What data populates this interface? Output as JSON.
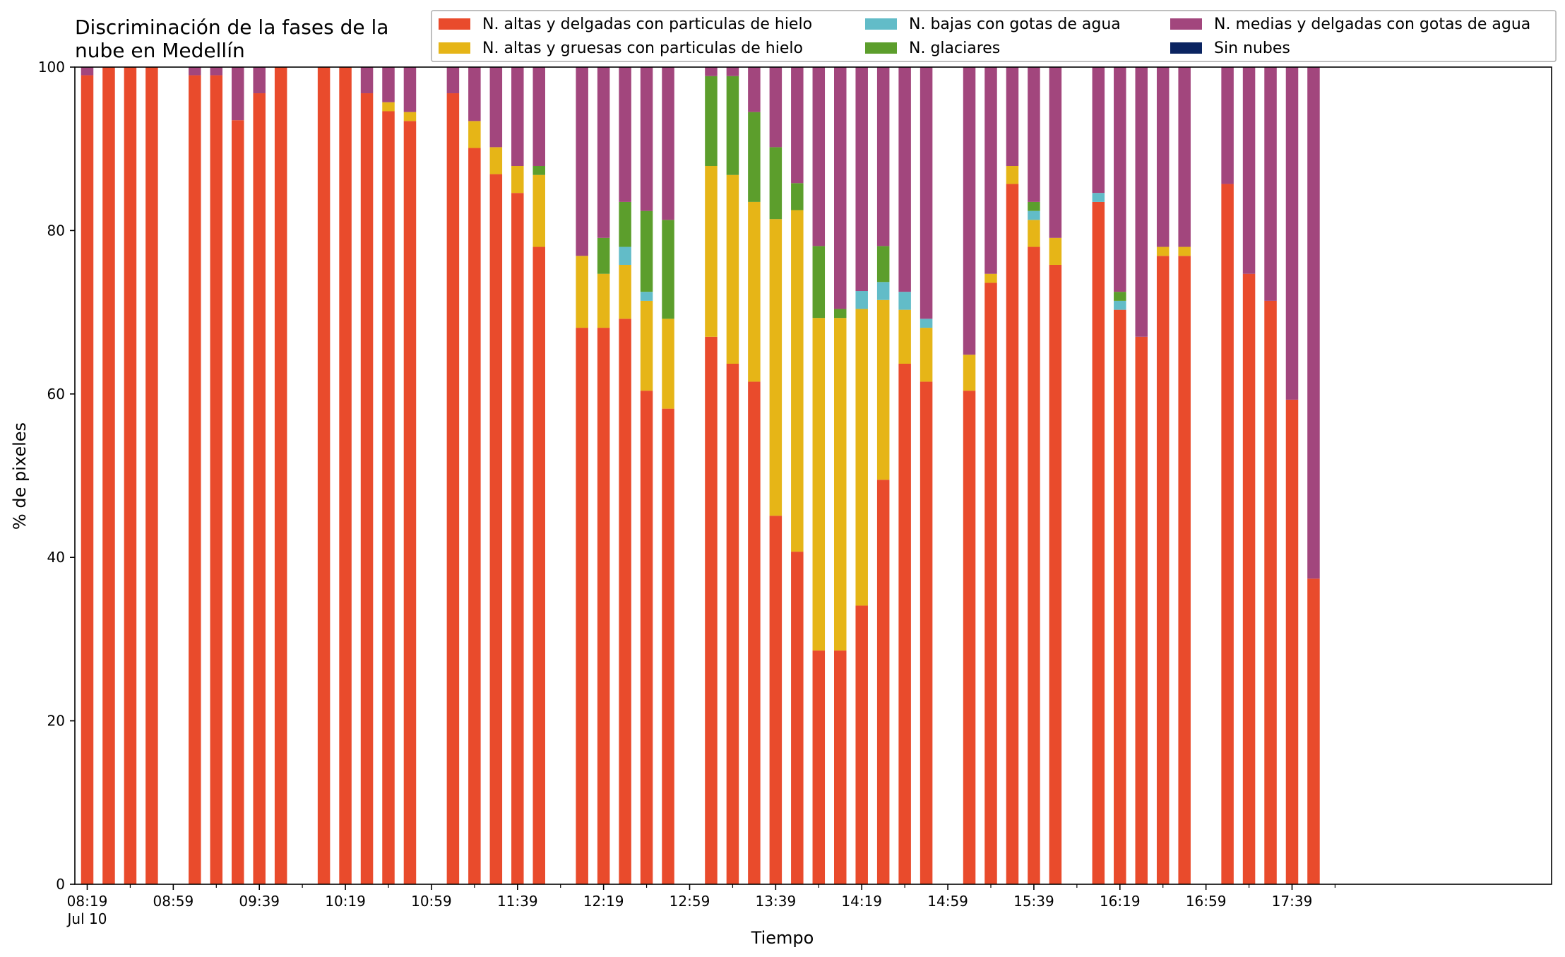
{
  "title": "Discriminación de la fases de la nube en Medellín",
  "chart_data": {
    "type": "bar",
    "stacked": true,
    "xlabel": "Tiempo",
    "ylabel": "% de pixeles",
    "ylim": [
      0,
      100
    ],
    "yticks": [
      0,
      20,
      40,
      60,
      80,
      100
    ],
    "x_time_range": [
      "08:19",
      "17:59"
    ],
    "x_major_ticks": [
      "08:19",
      "08:59",
      "09:39",
      "10:19",
      "10:59",
      "11:39",
      "12:19",
      "12:59",
      "13:39",
      "14:19",
      "14:59",
      "15:39",
      "16:19",
      "16:59",
      "17:39"
    ],
    "x_first_tick_date": "Jul 10",
    "legend_position": "top-right",
    "series": [
      {
        "name": "N. altas y delgadas con particulas de hielo",
        "color": "#e94b2c"
      },
      {
        "name": "N. altas y gruesas con particulas de hielo",
        "color": "#e6b517"
      },
      {
        "name": "N. bajas con gotas de agua",
        "color": "#62bcc8"
      },
      {
        "name": "N. glaciares",
        "color": "#5c9e2c"
      },
      {
        "name": "N. medias y delgadas con gotas de agua",
        "color": "#a2467d"
      },
      {
        "name": "Sin nubes",
        "color": "#0b2461"
      }
    ],
    "bars": [
      {
        "time": "08:19",
        "values": [
          99,
          0,
          0,
          0,
          1,
          0
        ]
      },
      {
        "time": "08:29",
        "values": [
          100,
          0,
          0,
          0,
          0,
          0
        ]
      },
      {
        "time": "08:39",
        "values": [
          100,
          0,
          0,
          0,
          0,
          0
        ]
      },
      {
        "time": "08:49",
        "values": [
          100,
          0,
          0,
          0,
          0,
          0
        ]
      },
      {
        "time": "09:09",
        "values": [
          99,
          0,
          0,
          0,
          1,
          0
        ]
      },
      {
        "time": "09:19",
        "values": [
          99,
          0,
          0,
          0,
          1,
          0
        ]
      },
      {
        "time": "09:29",
        "values": [
          93.5,
          0,
          0,
          0,
          6.5,
          0
        ]
      },
      {
        "time": "09:39",
        "values": [
          96.8,
          0,
          0,
          0,
          3.2,
          0
        ]
      },
      {
        "time": "09:49",
        "values": [
          100,
          0,
          0,
          0,
          0,
          0
        ]
      },
      {
        "time": "10:09",
        "values": [
          100,
          0,
          0,
          0,
          0,
          0
        ]
      },
      {
        "time": "10:19",
        "values": [
          100,
          0,
          0,
          0,
          0,
          0
        ]
      },
      {
        "time": "10:29",
        "values": [
          96.8,
          0,
          0,
          0,
          3.2,
          0
        ]
      },
      {
        "time": "10:39",
        "values": [
          94.6,
          1.1,
          0,
          0,
          4.3,
          0
        ]
      },
      {
        "time": "10:49",
        "values": [
          93.4,
          1.1,
          0,
          0,
          5.5,
          0
        ]
      },
      {
        "time": "11:09",
        "values": [
          96.8,
          0,
          0,
          0,
          3.2,
          0
        ]
      },
      {
        "time": "11:19",
        "values": [
          90.1,
          3.3,
          0,
          0,
          6.6,
          0
        ]
      },
      {
        "time": "11:29",
        "values": [
          86.9,
          3.3,
          0,
          0,
          9.8,
          0
        ]
      },
      {
        "time": "11:39",
        "values": [
          84.6,
          3.3,
          0,
          0,
          12.1,
          0
        ]
      },
      {
        "time": "11:49",
        "values": [
          78.0,
          8.8,
          0,
          1.1,
          12.1,
          0
        ]
      },
      {
        "time": "12:09",
        "values": [
          68.1,
          8.8,
          0,
          0,
          23.1,
          0
        ]
      },
      {
        "time": "12:19",
        "values": [
          68.1,
          6.6,
          0,
          4.4,
          20.9,
          0
        ]
      },
      {
        "time": "12:29",
        "values": [
          69.2,
          6.6,
          2.2,
          5.5,
          16.5,
          0
        ]
      },
      {
        "time": "12:39",
        "values": [
          60.4,
          11.0,
          1.1,
          9.9,
          17.6,
          0
        ]
      },
      {
        "time": "12:49",
        "values": [
          58.2,
          11.0,
          0,
          12.1,
          18.7,
          0
        ]
      },
      {
        "time": "13:09",
        "values": [
          67.0,
          20.9,
          0,
          11.0,
          1.1,
          0
        ]
      },
      {
        "time": "13:19",
        "values": [
          63.7,
          23.1,
          0,
          12.1,
          1.1,
          0
        ]
      },
      {
        "time": "13:29",
        "values": [
          61.5,
          22.0,
          0,
          11.0,
          5.5,
          0
        ]
      },
      {
        "time": "13:39",
        "values": [
          45.1,
          36.3,
          0,
          8.8,
          9.8,
          0
        ]
      },
      {
        "time": "13:49",
        "values": [
          40.7,
          41.8,
          0,
          3.3,
          14.2,
          0
        ]
      },
      {
        "time": "13:59",
        "values": [
          28.6,
          40.7,
          0,
          8.8,
          21.9,
          0
        ]
      },
      {
        "time": "14:09",
        "values": [
          28.6,
          40.7,
          0,
          1.1,
          29.6,
          0
        ]
      },
      {
        "time": "14:19",
        "values": [
          34.1,
          36.3,
          2.2,
          0,
          27.4,
          0
        ]
      },
      {
        "time": "14:29",
        "values": [
          49.5,
          22.0,
          2.2,
          4.4,
          21.9,
          0
        ]
      },
      {
        "time": "14:39",
        "values": [
          63.7,
          6.6,
          2.2,
          0,
          27.5,
          0
        ]
      },
      {
        "time": "14:49",
        "values": [
          61.5,
          6.6,
          1.1,
          0,
          30.8,
          0
        ]
      },
      {
        "time": "15:09",
        "values": [
          60.4,
          4.4,
          0,
          0,
          35.2,
          0
        ]
      },
      {
        "time": "15:19",
        "values": [
          73.6,
          1.1,
          0,
          0,
          25.3,
          0
        ]
      },
      {
        "time": "15:29",
        "values": [
          85.7,
          2.2,
          0,
          0,
          12.1,
          0
        ]
      },
      {
        "time": "15:39",
        "values": [
          78.0,
          3.3,
          1.1,
          1.1,
          16.5,
          0
        ]
      },
      {
        "time": "15:49",
        "values": [
          75.8,
          3.3,
          0,
          0,
          20.9,
          0
        ]
      },
      {
        "time": "16:09",
        "values": [
          83.5,
          0,
          1.1,
          0,
          15.4,
          0
        ]
      },
      {
        "time": "16:19",
        "values": [
          70.3,
          0,
          1.1,
          1.1,
          27.5,
          0
        ]
      },
      {
        "time": "16:29",
        "values": [
          67.0,
          0,
          0,
          0,
          33.0,
          0
        ]
      },
      {
        "time": "16:39",
        "values": [
          76.9,
          1.1,
          0,
          0,
          22.0,
          0
        ]
      },
      {
        "time": "16:49",
        "values": [
          76.9,
          1.1,
          0,
          0,
          22.0,
          0
        ]
      },
      {
        "time": "17:09",
        "values": [
          85.7,
          0,
          0,
          0,
          14.3,
          0
        ]
      },
      {
        "time": "17:19",
        "values": [
          74.7,
          0,
          0,
          0,
          25.3,
          0
        ]
      },
      {
        "time": "17:29",
        "values": [
          71.4,
          0,
          0,
          0,
          28.6,
          0
        ]
      },
      {
        "time": "17:39",
        "values": [
          59.3,
          0,
          0,
          0,
          40.7,
          0
        ]
      },
      {
        "time": "17:49",
        "values": [
          37.4,
          0,
          0,
          0,
          62.6,
          0
        ]
      }
    ]
  }
}
